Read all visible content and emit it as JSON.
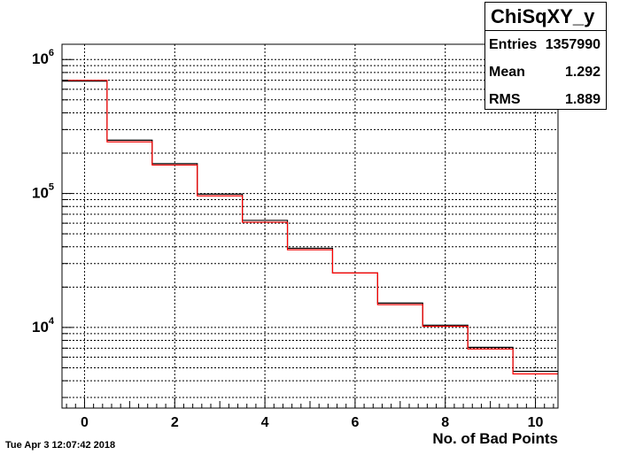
{
  "chart_data": {
    "type": "histogram",
    "title": "",
    "xlabel": "No. of Bad Points",
    "ylabel": "",
    "xlim": [
      -0.5,
      10.5
    ],
    "ylim": [
      2500,
      1300000
    ],
    "y_log_scale": true,
    "grid": true,
    "x_ticks": [
      0,
      2,
      4,
      6,
      8,
      10
    ],
    "y_ticks": [
      {
        "value": 10000,
        "base": "10",
        "exp": "4"
      },
      {
        "value": 100000,
        "base": "10",
        "exp": "5"
      },
      {
        "value": 1000000,
        "base": "10",
        "exp": "6"
      }
    ],
    "bin_width": 1,
    "x": [
      0,
      1,
      2,
      3,
      4,
      5,
      6,
      7,
      8,
      9,
      10
    ],
    "series": [
      {
        "color": "#000000",
        "values": [
          690000,
          250000,
          167000,
          99000,
          63000,
          39000,
          25500,
          15200,
          10400,
          7100,
          4700
        ]
      },
      {
        "color": "#ff0000",
        "values": [
          700000,
          243000,
          163000,
          96000,
          61000,
          38000,
          25500,
          14800,
          10200,
          6900,
          4500
        ]
      }
    ]
  },
  "stats_box": {
    "title": "ChiSqXY_y",
    "rows": [
      {
        "label": "Entries",
        "value": "1357990"
      },
      {
        "label": "Mean",
        "value": "1.292"
      },
      {
        "label": "RMS",
        "value": "1.889"
      }
    ]
  },
  "footer": {
    "date": "Tue Apr  3 12:07:42 2018"
  }
}
